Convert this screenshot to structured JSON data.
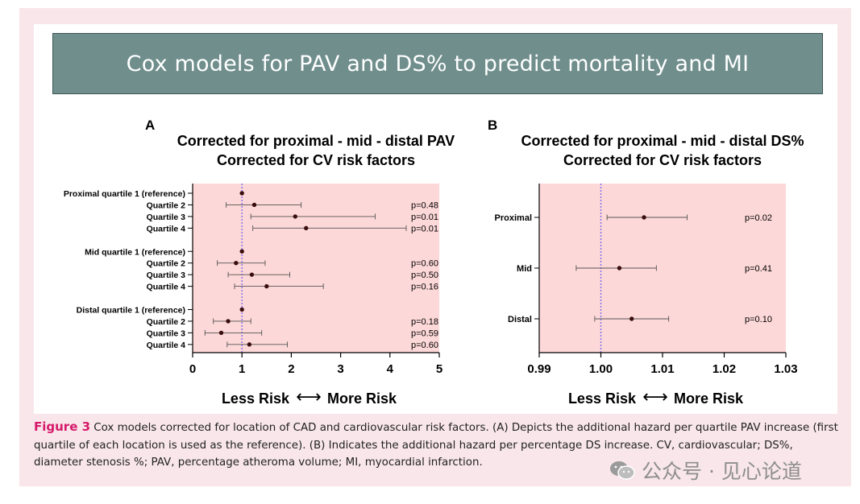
{
  "banner": {
    "title": "Cox models for PAV and DS% to predict mortality and MI"
  },
  "caption": {
    "label": "Figure 3",
    "text": " Cox models corrected for location of CAD and cardiovascular risk factors. (A) Depicts the additional hazard per quartile PAV increase (first quartile of each location is used as the reference). (B) Indicates the additional hazard per percentage DS increase. CV, cardiovascular; DS%, diameter stenosis %; PAV, percentage atheroma volume; MI, myocardial infarction."
  },
  "watermark": {
    "text": "公众号 · 见心论道",
    "icon": "wechat-icon"
  },
  "colors": {
    "plot_bg": "#fdd8d8",
    "ref_line": "#7b6ff0",
    "point": "#3a0e0e",
    "banner": "#6f8e8c",
    "caption_label": "#d6196a"
  },
  "chart_data": [
    {
      "panel_letter": "A",
      "type": "forest",
      "title_lines": [
        "Corrected for proximal - mid - distal PAV",
        "Corrected for CV risk factors"
      ],
      "xlim": [
        0,
        5
      ],
      "xticks": [
        0,
        1,
        2,
        3,
        4,
        5
      ],
      "xtick_labels": [
        "0",
        "1",
        "2",
        "3",
        "4",
        "5"
      ],
      "reference_line": 1,
      "xlabel_left": "Less Risk",
      "xlabel_arrow": "⟷",
      "xlabel_right": "More Risk",
      "rows": [
        {
          "label": "Proximal quartile 1 (reference)",
          "est": 1.0,
          "lo": null,
          "hi": null,
          "p": "",
          "slot": 0
        },
        {
          "label": "Quartile 2",
          "est": 1.25,
          "lo": 0.68,
          "hi": 2.2,
          "p": "p=0.48",
          "slot": 1
        },
        {
          "label": "Quartile 3",
          "est": 2.08,
          "lo": 1.18,
          "hi": 3.7,
          "p": "p=0.01",
          "slot": 2
        },
        {
          "label": "Quartile 4",
          "est": 2.3,
          "lo": 1.22,
          "hi": 4.33,
          "p": "p=0.01",
          "slot": 3
        },
        {
          "label": "Mid quartile 1 (reference)",
          "est": 1.0,
          "lo": null,
          "hi": null,
          "p": "",
          "slot": 5
        },
        {
          "label": "Quartile 2",
          "est": 0.88,
          "lo": 0.5,
          "hi": 1.47,
          "p": "p=0.60",
          "slot": 6
        },
        {
          "label": "Quartile 3",
          "est": 1.2,
          "lo": 0.72,
          "hi": 1.97,
          "p": "p=0.50",
          "slot": 7
        },
        {
          "label": "Quartile 4",
          "est": 1.5,
          "lo": 0.85,
          "hi": 2.65,
          "p": "p=0.16",
          "slot": 8
        },
        {
          "label": "Distal quartile 1 (reference)",
          "est": 1.0,
          "lo": null,
          "hi": null,
          "p": "",
          "slot": 10
        },
        {
          "label": "Quartile 2",
          "est": 0.72,
          "lo": 0.42,
          "hi": 1.18,
          "p": "p=0.18",
          "slot": 11
        },
        {
          "label": "Quartile 3",
          "est": 0.58,
          "lo": 0.25,
          "hi": 1.4,
          "p": "p=0.59",
          "slot": 12
        },
        {
          "label": "Quartile 4",
          "est": 1.15,
          "lo": 0.7,
          "hi": 1.92,
          "p": "p=0.60",
          "slot": 13
        }
      ]
    },
    {
      "panel_letter": "B",
      "type": "forest",
      "title_lines": [
        "Corrected for proximal - mid - distal DS%",
        "Corrected for CV risk factors"
      ],
      "xlim": [
        0.99,
        1.03
      ],
      "xticks": [
        0.99,
        1.0,
        1.01,
        1.02,
        1.03
      ],
      "xtick_labels": [
        "0.99",
        "1.00",
        "1.01",
        "1.02",
        "1.03"
      ],
      "reference_line": 1.0,
      "xlabel_left": "Less Risk",
      "xlabel_arrow": "⟷",
      "xlabel_right": "More Risk",
      "rows": [
        {
          "label": "Proximal",
          "est": 1.007,
          "lo": 1.001,
          "hi": 1.014,
          "p": "p=0.02",
          "slot": 0
        },
        {
          "label": "Mid",
          "est": 1.003,
          "lo": 0.996,
          "hi": 1.009,
          "p": "p=0.41",
          "slot": 1
        },
        {
          "label": "Distal",
          "est": 1.005,
          "lo": 0.999,
          "hi": 1.011,
          "p": "p=0.10",
          "slot": 2
        }
      ]
    }
  ]
}
